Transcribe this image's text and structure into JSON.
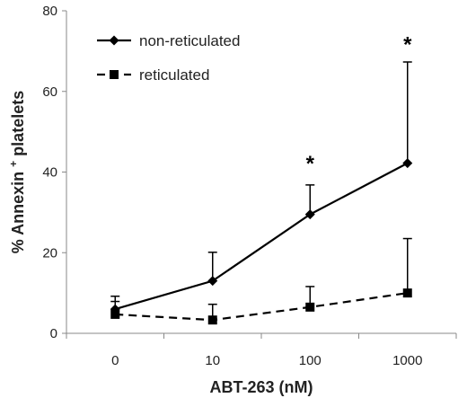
{
  "chart_data": {
    "type": "line",
    "categories": [
      "0",
      "10",
      "100",
      "1000"
    ],
    "xlabel": "ABT-263 (nM)",
    "ylabel": {
      "prefix": "% Annexin",
      "superscript": "+",
      "suffix": " platelets"
    },
    "ylim": [
      0,
      80
    ],
    "yticks": [
      "0",
      "20",
      "40",
      "60",
      "80"
    ],
    "grid": false,
    "legend_position": "top-left",
    "series": [
      {
        "name": "non-reticulated",
        "values": [
          6,
          13,
          29.5,
          42.2
        ],
        "error_upper": [
          9.2,
          20.1,
          36.8,
          67.3
        ],
        "line_style": "solid",
        "marker": "diamond",
        "color": "#000000"
      },
      {
        "name": "reticulated",
        "values": [
          4.7,
          3.3,
          6.5,
          10
        ],
        "error_upper": [
          7.9,
          7.2,
          11.6,
          23.5
        ],
        "line_style": "dashed",
        "marker": "square",
        "color": "#000000"
      }
    ],
    "annotations": [
      {
        "text": "*",
        "category": "100",
        "y": 43.5
      },
      {
        "text": "*",
        "category": "1000",
        "y": 73
      }
    ]
  }
}
